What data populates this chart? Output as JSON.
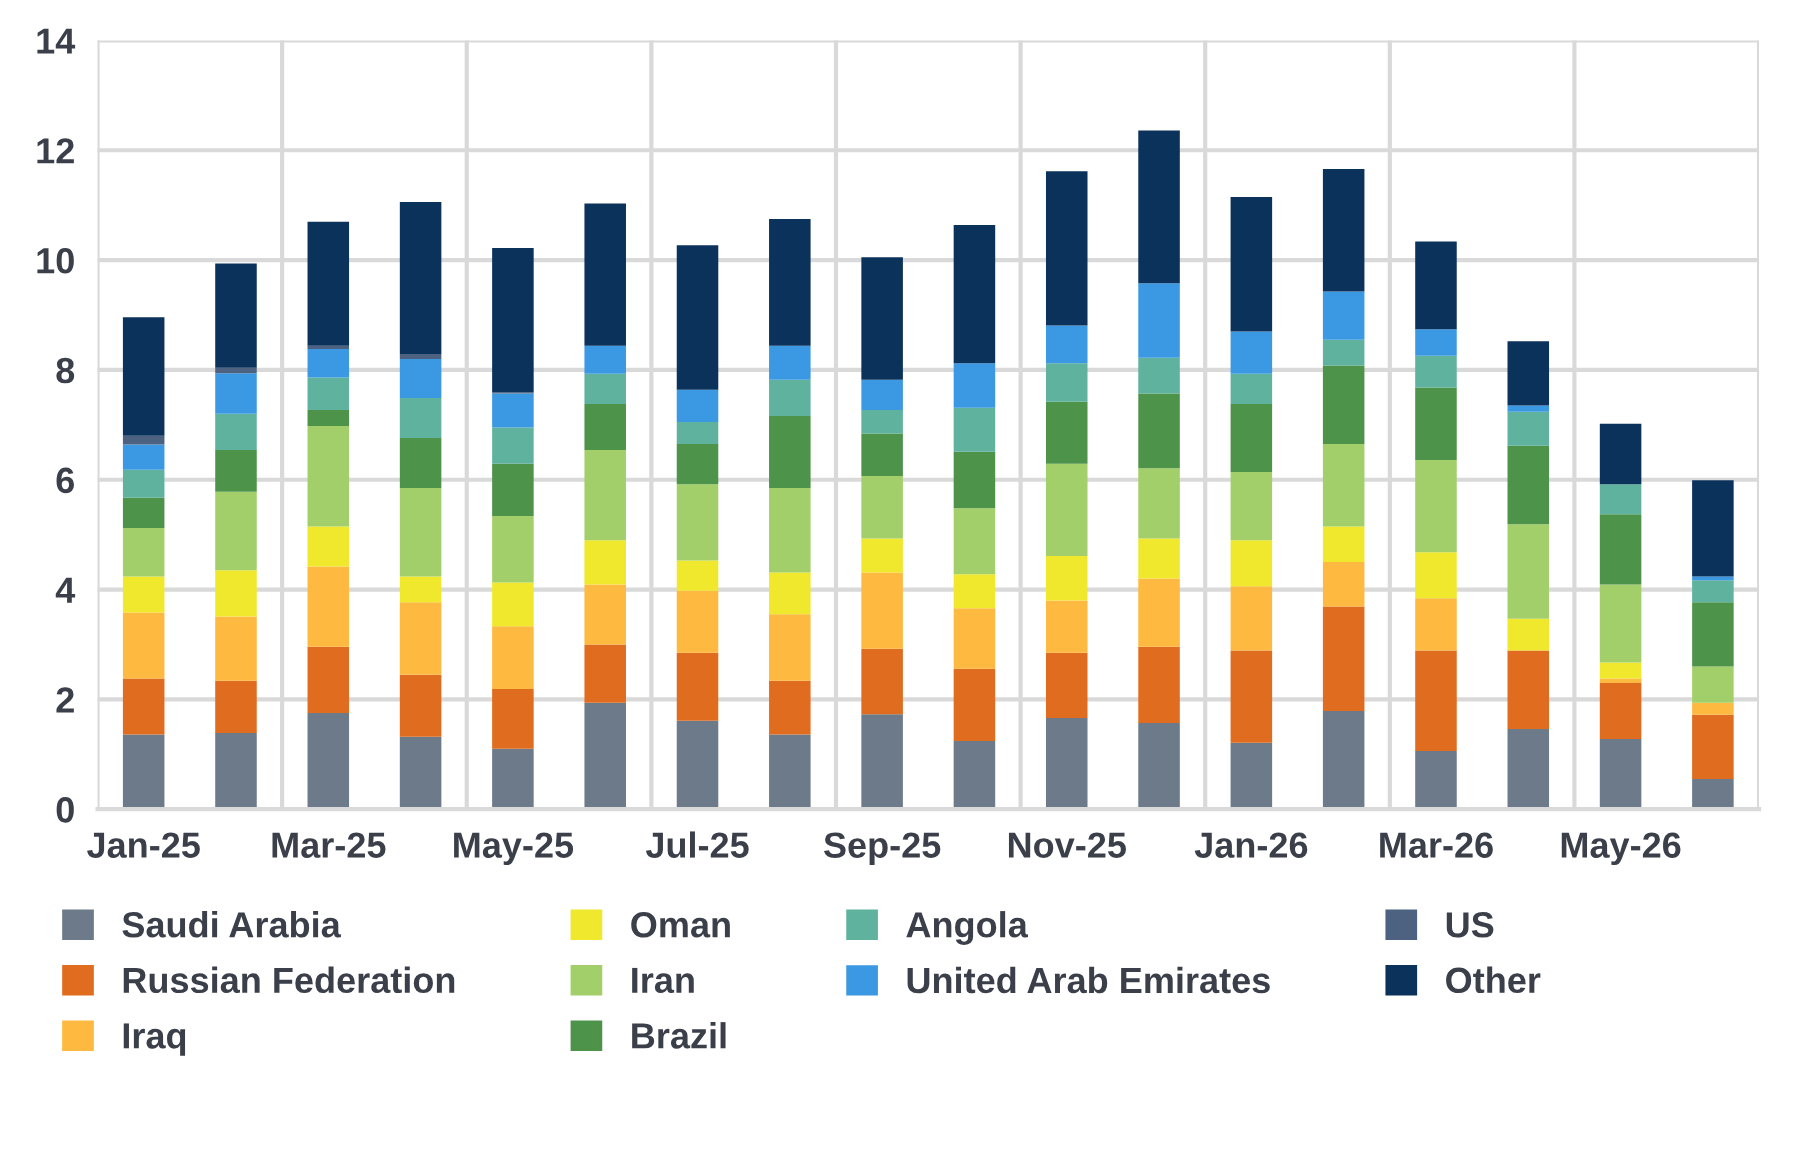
{
  "chart_data": {
    "type": "bar",
    "stacked": true,
    "categories": [
      "Jan-25",
      null,
      "Mar-25",
      null,
      "May-25",
      null,
      "Jul-25",
      null,
      "Sep-25",
      null,
      "Nov-25",
      null,
      "Jan-26",
      null,
      "Mar-26",
      null,
      "May-26",
      null
    ],
    "series": [
      {
        "name": "Saudi Arabia",
        "color": "#6c7a89",
        "values": [
          1.36,
          1.39,
          1.75,
          1.32,
          1.1,
          1.94,
          1.61,
          1.36,
          1.73,
          1.24,
          1.66,
          1.57,
          1.21,
          1.79,
          1.06,
          1.46,
          1.28,
          0.55
        ]
      },
      {
        "name": "Russian Federation",
        "color": "#e06c1f",
        "values": [
          1.02,
          0.95,
          1.21,
          1.13,
          1.09,
          1.06,
          1.24,
          0.98,
          1.19,
          1.32,
          1.19,
          1.39,
          1.68,
          1.9,
          1.83,
          1.43,
          1.02,
          1.17
        ]
      },
      {
        "name": "Iraq",
        "color": "#fdb940",
        "values": [
          1.2,
          1.17,
          1.46,
          1.32,
          1.14,
          1.09,
          1.13,
          1.21,
          1.39,
          1.1,
          0.95,
          1.24,
          1.17,
          0.81,
          0.95,
          0,
          0.08,
          0.22
        ]
      },
      {
        "name": "Oman",
        "color": "#efe82c",
        "values": [
          0.66,
          0.84,
          0.73,
          0.47,
          0.8,
          0.81,
          0.55,
          0.76,
          0.62,
          0.62,
          0.81,
          0.73,
          0.84,
          0.65,
          0.84,
          0.58,
          0.29,
          0
        ]
      },
      {
        "name": "Iran",
        "color": "#a3cf6b",
        "values": [
          0.88,
          1.43,
          1.83,
          1.61,
          1.21,
          1.64,
          1.39,
          1.54,
          1.14,
          1.2,
          1.68,
          1.28,
          1.24,
          1.5,
          1.68,
          1.72,
          1.42,
          0.66
        ]
      },
      {
        "name": "Brazil",
        "color": "#4d944a",
        "values": [
          0.55,
          0.76,
          0.29,
          0.91,
          0.95,
          0.84,
          0.73,
          1.31,
          0.77,
          1.03,
          1.13,
          1.36,
          1.24,
          1.43,
          1.32,
          1.43,
          1.28,
          1.17
        ]
      },
      {
        "name": "Angola",
        "color": "#5fb29e",
        "values": [
          0.51,
          0.66,
          0.59,
          0.73,
          0.66,
          0.55,
          0.4,
          0.66,
          0.43,
          0.8,
          0.7,
          0.65,
          0.55,
          0.47,
          0.58,
          0.62,
          0.55,
          0.4
        ]
      },
      {
        "name": "United Arab Emirates",
        "color": "#3b98e2",
        "values": [
          0.46,
          0.74,
          0.52,
          0.71,
          0.62,
          0.51,
          0.59,
          0.62,
          0.55,
          0.81,
          0.69,
          1.36,
          0.77,
          0.88,
          0.48,
          0.11,
          0,
          0.07
        ]
      },
      {
        "name": "US",
        "color": "#4c6280",
        "values": [
          0.16,
          0.1,
          0.06,
          0.09,
          0.02,
          0,
          0,
          0,
          0,
          0,
          0,
          0,
          0,
          0,
          0,
          0,
          0,
          0
        ]
      },
      {
        "name": "Other",
        "color": "#0b325b",
        "values": [
          2.16,
          1.9,
          2.26,
          2.77,
          2.63,
          2.59,
          2.63,
          2.31,
          2.23,
          2.52,
          2.81,
          2.78,
          2.45,
          2.23,
          1.6,
          1.17,
          1.1,
          1.75
        ]
      }
    ],
    "ylim": [
      0,
      14
    ],
    "yticks": [
      0,
      2,
      4,
      6,
      8,
      10,
      12,
      14
    ],
    "grid": true,
    "legend": "bottom"
  }
}
